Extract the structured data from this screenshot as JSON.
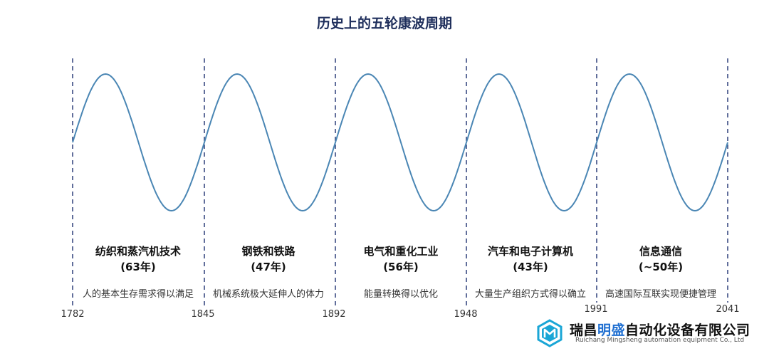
{
  "title": "历史上的五轮康波周期",
  "waves": [
    {
      "name": "纺织和蒸汽机技术",
      "period": "(63年)",
      "desc": "人的基本生存需求得以满足"
    },
    {
      "name": "钢铁和铁路",
      "period": "(47年)",
      "desc": "机械系统极大延伸人的体力"
    },
    {
      "name": "电气和重化工业",
      "period": "(56年)",
      "desc": "能量转换得以优化"
    },
    {
      "name": "汽车和电子计算机",
      "period": "(43年)",
      "desc": "大量生产组织方式得以确立"
    },
    {
      "name": "信息通信",
      "period": "(~50年)",
      "desc": "高速国际互联实现便捷管理"
    }
  ],
  "years": [
    "1782",
    "1845",
    "1892",
    "1948",
    "1991",
    "2041"
  ],
  "logo": {
    "name_a": "瑞昌",
    "name_b": "明盛",
    "name_c": "自动化设备有限公司",
    "english": "Ruichang Mingsheng automation equipment Co., Ltd"
  },
  "colors": {
    "wave": "#4a86b4",
    "divider": "#2d3f7a",
    "title": "#1f2f5c",
    "brand": "#1f6fd1"
  }
}
